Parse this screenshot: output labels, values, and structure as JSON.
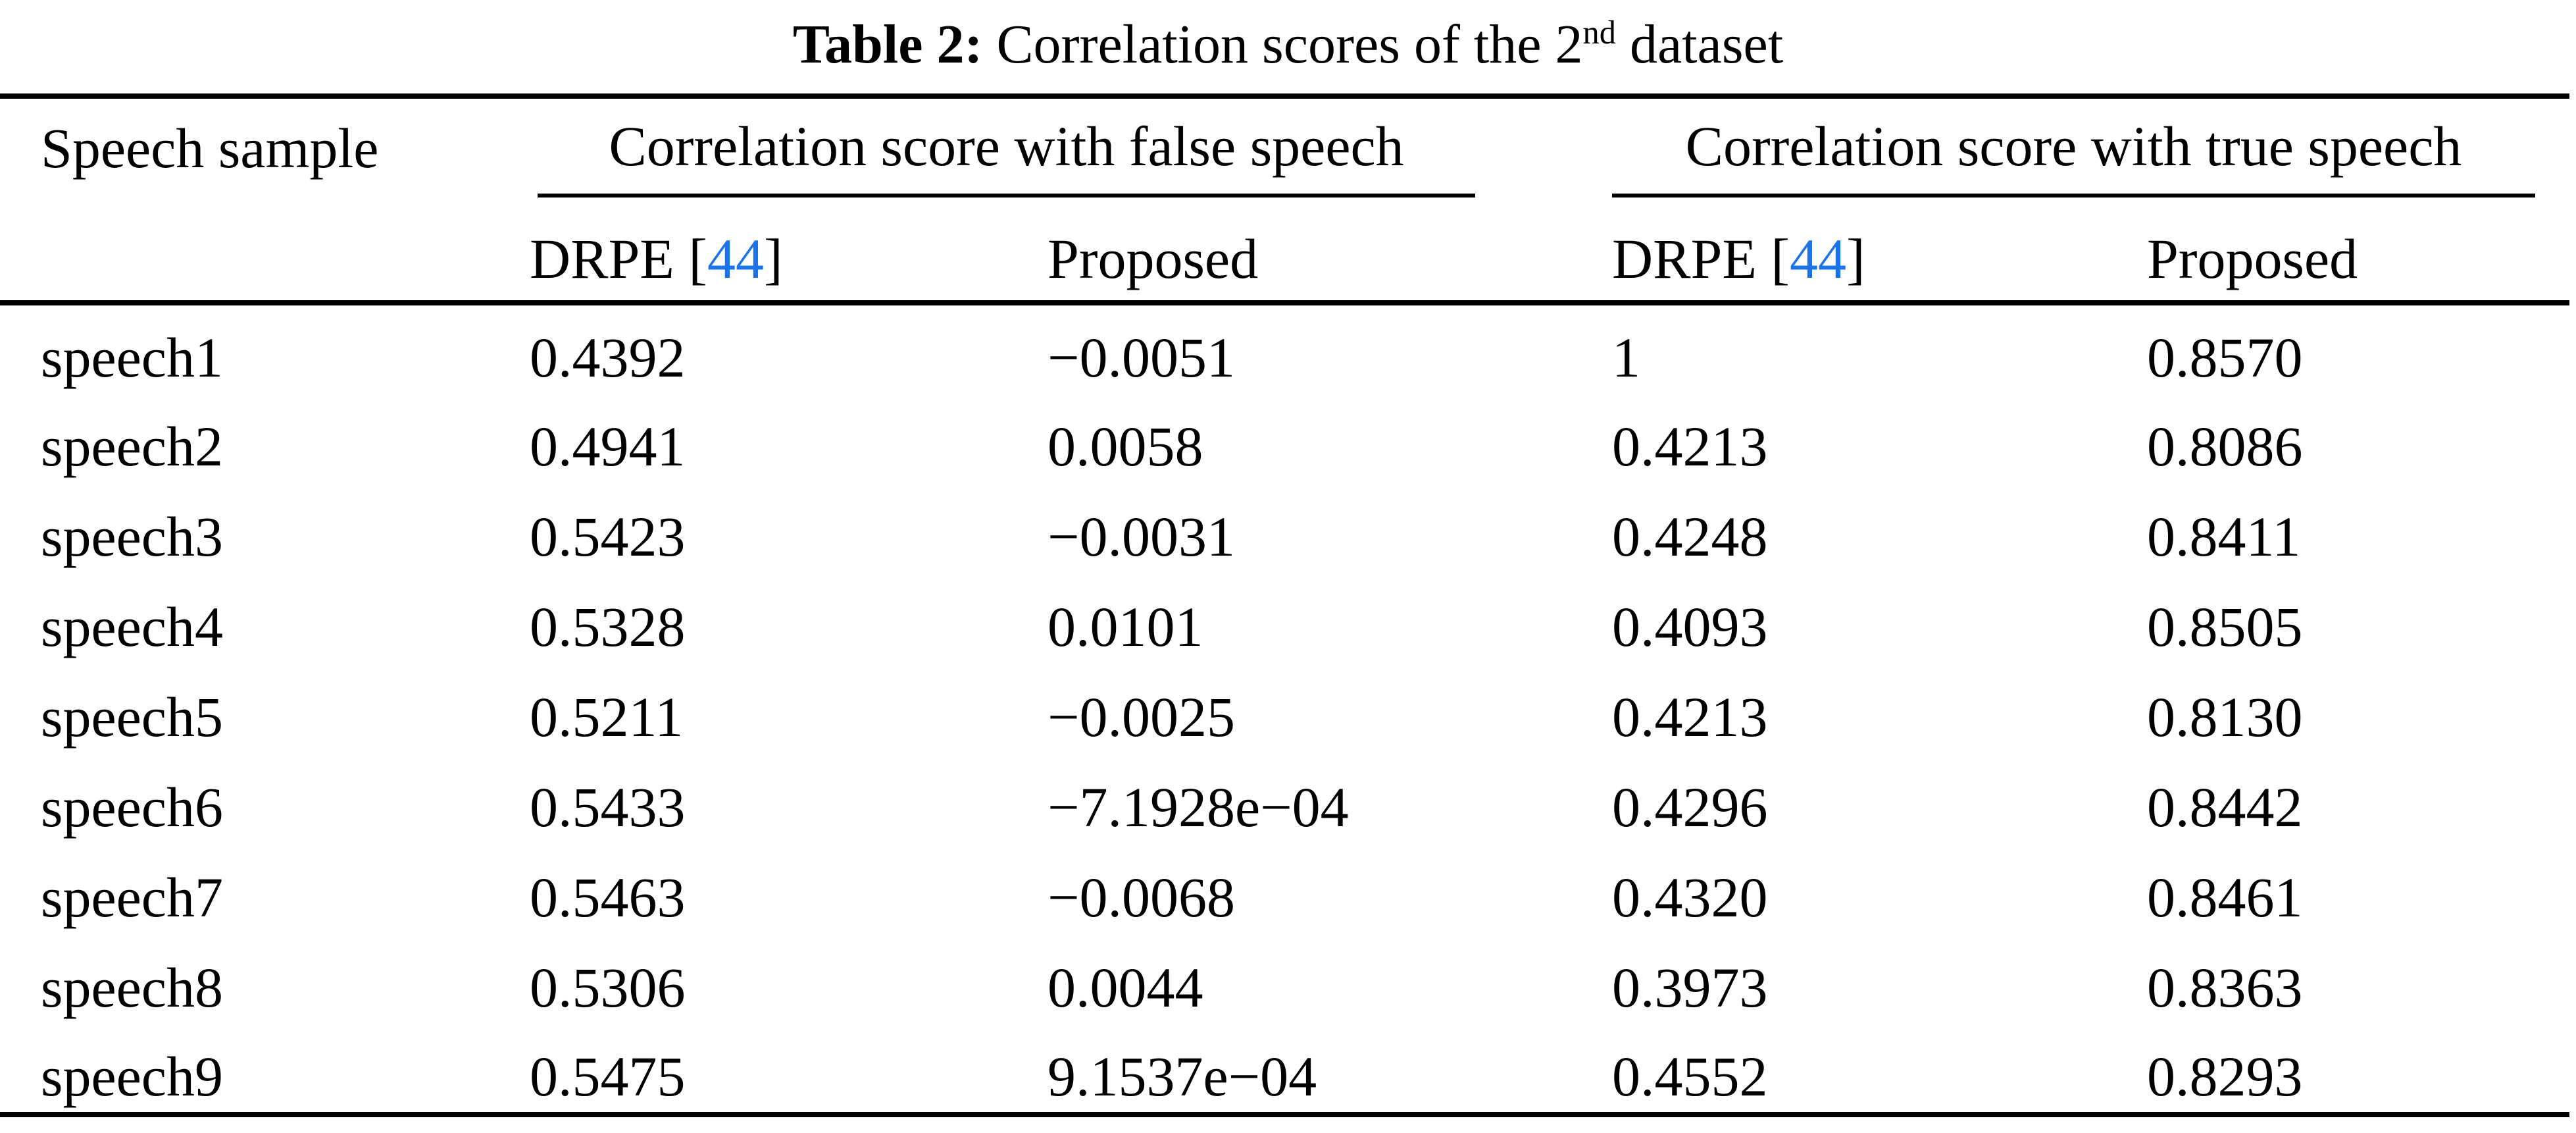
{
  "caption": {
    "label": "Table 2:",
    "text": " Correlation scores of the 2",
    "ordinal_suffix": "nd",
    "tail": " dataset"
  },
  "header": {
    "speech_sample": "Speech sample",
    "group_false": "Correlation score with false speech",
    "group_true": "Correlation score with true speech",
    "drpe_prefix": "DRPE [",
    "drpe_ref": "44",
    "drpe_suffix": "]",
    "proposed": "Proposed"
  },
  "rows": [
    {
      "sample": "speech1",
      "false_drpe": "0.4392",
      "false_proposed": "−0.0051",
      "true_drpe": "1",
      "true_proposed": "0.8570"
    },
    {
      "sample": "speech2",
      "false_drpe": "0.4941",
      "false_proposed": "0.0058",
      "true_drpe": "0.4213",
      "true_proposed": "0.8086"
    },
    {
      "sample": "speech3",
      "false_drpe": "0.5423",
      "false_proposed": "−0.0031",
      "true_drpe": "0.4248",
      "true_proposed": "0.8411"
    },
    {
      "sample": "speech4",
      "false_drpe": "0.5328",
      "false_proposed": "0.0101",
      "true_drpe": "0.4093",
      "true_proposed": "0.8505"
    },
    {
      "sample": "speech5",
      "false_drpe": "0.5211",
      "false_proposed": "−0.0025",
      "true_drpe": "0.4213",
      "true_proposed": "0.8130"
    },
    {
      "sample": "speech6",
      "false_drpe": "0.5433",
      "false_proposed": "−7.1928e−04",
      "true_drpe": "0.4296",
      "true_proposed": "0.8442"
    },
    {
      "sample": "speech7",
      "false_drpe": "0.5463",
      "false_proposed": "−0.0068",
      "true_drpe": "0.4320",
      "true_proposed": "0.8461"
    },
    {
      "sample": "speech8",
      "false_drpe": "0.5306",
      "false_proposed": "0.0044",
      "true_drpe": "0.3973",
      "true_proposed": "0.8363"
    },
    {
      "sample": "speech9",
      "false_drpe": "0.5475",
      "false_proposed": "9.1537e−04",
      "true_drpe": "0.4552",
      "true_proposed": "0.8293"
    }
  ],
  "colors": {
    "text": "#000000",
    "background": "#ffffff",
    "link": "#1a73e8",
    "rule": "#000000"
  }
}
